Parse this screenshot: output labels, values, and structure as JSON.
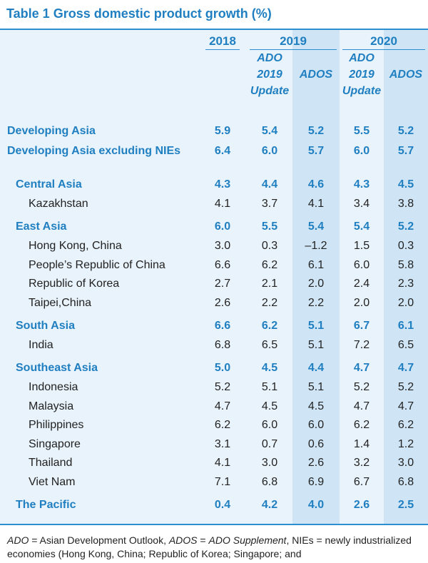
{
  "title": "Table 1   Gross domestic product growth (%)",
  "header": {
    "year_2018": "2018",
    "year_2019": "2019",
    "year_2020": "2020",
    "ado_line1": "ADO",
    "ado_line2": "2019",
    "ado_line3": "Update",
    "ados": "ADOS"
  },
  "rows": [
    {
      "label": "Developing Asia",
      "v": [
        "5.9",
        "5.4",
        "5.2",
        "5.5",
        "5.2"
      ]
    },
    {
      "label": "Developing Asia excluding NIEs",
      "v": [
        "6.4",
        "6.0",
        "5.7",
        "6.0",
        "5.7"
      ]
    },
    {
      "label": "Central Asia",
      "v": [
        "4.3",
        "4.4",
        "4.6",
        "4.3",
        "4.5"
      ]
    },
    {
      "label": "Kazakhstan",
      "v": [
        "4.1",
        "3.7",
        "4.1",
        "3.4",
        "3.8"
      ]
    },
    {
      "label": "East Asia",
      "v": [
        "6.0",
        "5.5",
        "5.4",
        "5.4",
        "5.2"
      ]
    },
    {
      "label": "Hong Kong, China",
      "v": [
        "3.0",
        "0.3",
        "–1.2",
        "1.5",
        "0.3"
      ]
    },
    {
      "label": "People’s Republic of China",
      "v": [
        "6.6",
        "6.2",
        "6.1",
        "6.0",
        "5.8"
      ]
    },
    {
      "label": "Republic of Korea",
      "v": [
        "2.7",
        "2.1",
        "2.0",
        "2.4",
        "2.3"
      ]
    },
    {
      "label": "Taipei,China",
      "v": [
        "2.6",
        "2.2",
        "2.2",
        "2.0",
        "2.0"
      ]
    },
    {
      "label": "South Asia",
      "v": [
        "6.6",
        "6.2",
        "5.1",
        "6.7",
        "6.1"
      ]
    },
    {
      "label": "India",
      "v": [
        "6.8",
        "6.5",
        "5.1",
        "7.2",
        "6.5"
      ]
    },
    {
      "label": "Southeast Asia",
      "v": [
        "5.0",
        "4.5",
        "4.4",
        "4.7",
        "4.7"
      ]
    },
    {
      "label": "Indonesia",
      "v": [
        "5.2",
        "5.1",
        "5.1",
        "5.2",
        "5.2"
      ]
    },
    {
      "label": "Malaysia",
      "v": [
        "4.7",
        "4.5",
        "4.5",
        "4.7",
        "4.7"
      ]
    },
    {
      "label": "Philippines",
      "v": [
        "6.2",
        "6.0",
        "6.0",
        "6.2",
        "6.2"
      ]
    },
    {
      "label": "Singapore",
      "v": [
        "3.1",
        "0.7",
        "0.6",
        "1.4",
        "1.2"
      ]
    },
    {
      "label": "Thailand",
      "v": [
        "4.1",
        "3.0",
        "2.6",
        "3.2",
        "3.0"
      ]
    },
    {
      "label": "Viet Nam",
      "v": [
        "7.1",
        "6.8",
        "6.9",
        "6.7",
        "6.8"
      ]
    },
    {
      "label": "The Pacific",
      "v": [
        "0.4",
        "4.2",
        "4.0",
        "2.6",
        "2.5"
      ]
    }
  ],
  "footnote": {
    "ado": "ADO",
    "ado_def": " = Asian Development Outlook, ",
    "ados": "ADOS",
    "ados_def": " = ",
    "ado_supp": "ADO Supplement",
    "rest": ", NIEs = newly industrialized economies (Hong Kong, China; Republic of Korea; Singapore; and"
  }
}
